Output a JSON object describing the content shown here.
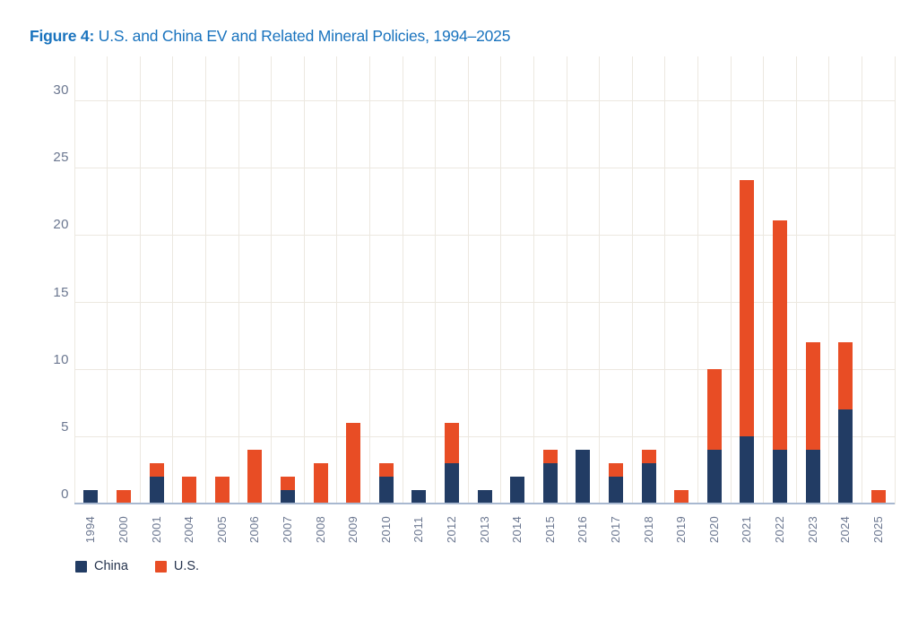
{
  "title": {
    "label": "Figure 4:",
    "text": " U.S. and China EV and Related Mineral Policies, 1994–2025"
  },
  "chart_data": {
    "type": "bar",
    "stacked": true,
    "title": "Figure 4: U.S. and China EV and Related Mineral Policies, 1994–2025",
    "xlabel": "",
    "ylabel": "",
    "categories": [
      "1994",
      "2000",
      "2001",
      "2004",
      "2005",
      "2006",
      "2007",
      "2008",
      "2009",
      "2010",
      "2011",
      "2012",
      "2013",
      "2014",
      "2015",
      "2016",
      "2017",
      "2018",
      "2019",
      "2020",
      "2021",
      "2022",
      "2023",
      "2024",
      "2025"
    ],
    "series": [
      {
        "name": "China",
        "color": "#223C64",
        "values": [
          1,
          0,
          2,
          0,
          0,
          0,
          1,
          0,
          0,
          2,
          1,
          3,
          1,
          2,
          3,
          4,
          2,
          3,
          0,
          4,
          5,
          4,
          4,
          7,
          0
        ]
      },
      {
        "name": "U.S.",
        "color": "#E84D25",
        "values": [
          0,
          1,
          1,
          2,
          2,
          4,
          1,
          3,
          6,
          1,
          0,
          3,
          0,
          0,
          1,
          0,
          1,
          1,
          1,
          6,
          19,
          17,
          8,
          5,
          1
        ]
      }
    ],
    "y_ticks": [
      0,
      5,
      10,
      15,
      20,
      25,
      30
    ],
    "ylim": [
      0,
      30
    ],
    "grid": "both",
    "legend_position": "bottom-left"
  },
  "colors": {
    "title": "#1973BE",
    "grid": "#ECE8E0",
    "axis_line": "#A8B8D0",
    "tick_text": "#6B7790",
    "legend_text": "#25334D"
  }
}
